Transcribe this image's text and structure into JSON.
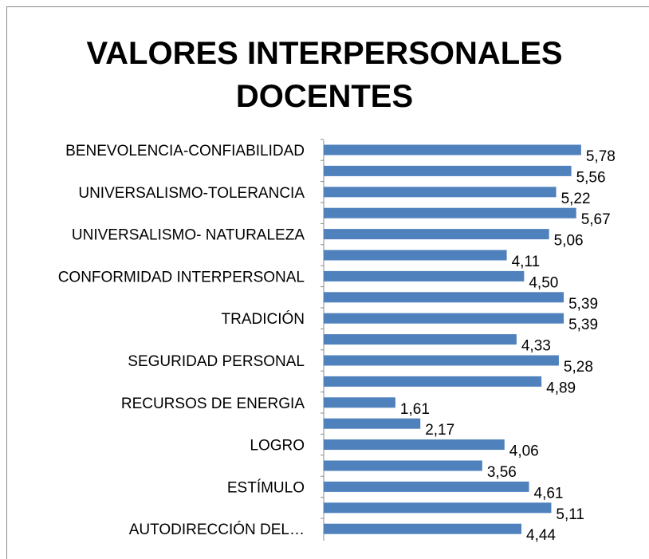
{
  "chart_data": {
    "type": "barh",
    "title": "VALORES INTERPERSONALES DOCENTES",
    "categories": [
      "BENEVOLENCIA-CONFIABILIDAD",
      null,
      "UNIVERSALISMO-TOLERANCIA",
      null,
      "UNIVERSALISMO- NATURALEZA",
      null,
      "CONFORMIDAD INTERPERSONAL",
      null,
      "TRADICIÓN",
      null,
      "SEGURIDAD PERSONAL",
      null,
      "RECURSOS DE ENERGIA",
      null,
      "LOGRO",
      null,
      "ESTÍMULO",
      null,
      "AUTODIRECCIÓN DEL…"
    ],
    "values": [
      5.78,
      5.56,
      5.22,
      5.67,
      5.06,
      4.11,
      4.5,
      5.39,
      5.39,
      4.33,
      5.28,
      4.89,
      1.61,
      2.17,
      4.06,
      3.56,
      4.61,
      5.11,
      4.44
    ],
    "value_labels": [
      "5,78",
      "5,56",
      "5,22",
      "5,67",
      "5,06",
      "4,11",
      "4,50",
      "5,39",
      "5,39",
      "4,33",
      "5,28",
      "4,89",
      "1,61",
      "2,17",
      "4,06",
      "3,56",
      "4,61",
      "5,11",
      "4,44"
    ],
    "color": "#4f81bd",
    "xlim": [
      0,
      7
    ]
  }
}
